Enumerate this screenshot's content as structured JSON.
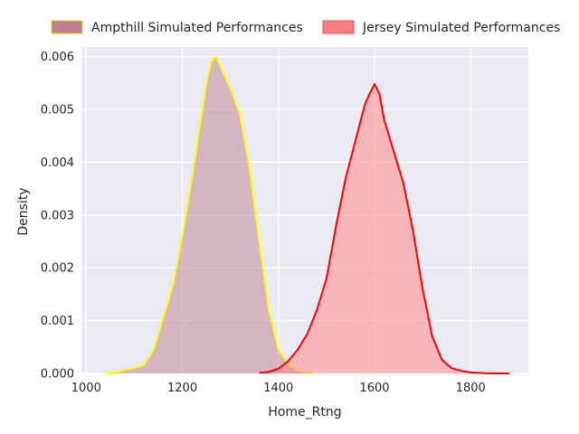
{
  "chart_data": {
    "type": "area",
    "title": "",
    "xlabel": "Home_Rtng",
    "ylabel": "Density",
    "xlim": [
      990,
      1920
    ],
    "ylim": [
      0,
      0.00618
    ],
    "xticks": [
      1000,
      1200,
      1400,
      1600,
      1800
    ],
    "xtick_labels": [
      "1000",
      "1200",
      "1400",
      "1600",
      "1800"
    ],
    "yticks": [
      0,
      0.001,
      0.002,
      0.003,
      0.004,
      0.005,
      0.006
    ],
    "ytick_labels": [
      "0.000",
      "0.001",
      "0.002",
      "0.003",
      "0.004",
      "0.005",
      "0.006"
    ],
    "grid": true,
    "legend_position": "top-center",
    "series": [
      {
        "name": "Ampthill Simulated Performances",
        "line_color": "#ffff00",
        "fill_color": "#c08090",
        "x": [
          1040,
          1060,
          1080,
          1100,
          1120,
          1140,
          1160,
          1180,
          1200,
          1220,
          1240,
          1250,
          1260,
          1270,
          1280,
          1290,
          1300,
          1320,
          1340,
          1360,
          1380,
          1400,
          1420,
          1440,
          1460,
          1470
        ],
        "y": [
          0,
          1e-05,
          7e-05,
          0.0001,
          0.00016,
          0.00045,
          0.00105,
          0.00165,
          0.0026,
          0.0037,
          0.0049,
          0.0055,
          0.0059,
          0.006,
          0.0058,
          0.0056,
          0.0054,
          0.0049,
          0.0039,
          0.0025,
          0.0012,
          0.00045,
          0.00017,
          5e-05,
          1e-05,
          0
        ]
      },
      {
        "name": "Jersey Simulated Performances",
        "line_color": "#ff0000",
        "fill_color": "#ff7f7f",
        "x": [
          1360,
          1380,
          1400,
          1420,
          1440,
          1460,
          1480,
          1500,
          1520,
          1540,
          1560,
          1580,
          1590,
          1600,
          1610,
          1620,
          1640,
          1660,
          1680,
          1700,
          1720,
          1740,
          1760,
          1780,
          1800,
          1820,
          1840,
          1860,
          1880
        ],
        "y": [
          1e-05,
          3e-05,
          9e-05,
          0.00023,
          0.00045,
          0.00075,
          0.0012,
          0.0018,
          0.0028,
          0.0037,
          0.0044,
          0.0051,
          0.0053,
          0.00548,
          0.0053,
          0.0048,
          0.0042,
          0.0036,
          0.0027,
          0.0016,
          0.0007,
          0.00026,
          0.0001,
          5e-05,
          2e-05,
          1e-05,
          0,
          0,
          0
        ]
      }
    ]
  }
}
